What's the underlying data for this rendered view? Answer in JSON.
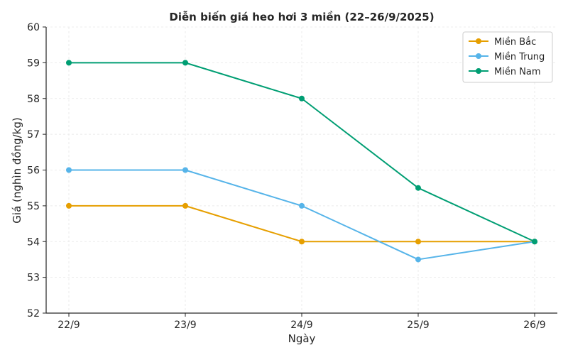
{
  "chart_data": {
    "type": "line",
    "title": "Diễn biến giá heo hơi 3 miền (22–26/9/2025)",
    "xlabel": "Ngày",
    "ylabel": "Giá (nghìn đồng/kg)",
    "categories": [
      "22/9",
      "23/9",
      "24/9",
      "25/9",
      "26/9"
    ],
    "ylim": [
      52,
      60
    ],
    "yticks": [
      "52",
      "53",
      "54",
      "55",
      "56",
      "57",
      "58",
      "59",
      "60"
    ],
    "grid": true,
    "legend_position": "top-right",
    "series": [
      {
        "name": "Miền Bắc",
        "color": "#E69F00",
        "values": [
          55,
          55,
          54,
          54,
          54
        ]
      },
      {
        "name": "Miền Trung",
        "color": "#56B4E9",
        "values": [
          56,
          56,
          55,
          53.5,
          54
        ]
      },
      {
        "name": "Miền Nam",
        "color": "#009E73",
        "values": [
          59,
          59,
          58,
          55.5,
          54
        ]
      }
    ]
  }
}
